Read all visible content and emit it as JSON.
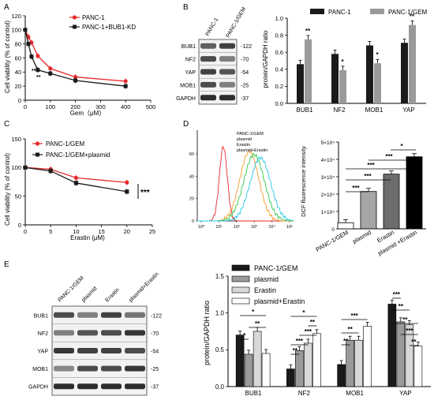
{
  "figure": {
    "panels": [
      "A",
      "B",
      "C",
      "D",
      "E"
    ]
  },
  "panel_a": {
    "letter": "A",
    "ylabel": "Cell viability (% of control)",
    "xlabel": "Gem（μM）",
    "yticks": [
      "0",
      "20",
      "40",
      "60",
      "80",
      "100",
      "120"
    ],
    "xticks": [
      "0",
      "100",
      "200",
      "300",
      "400",
      "500"
    ],
    "legend": [
      "PANC-1",
      "PANC-1+BUB1-KD"
    ],
    "sig": [
      "**",
      "**"
    ]
  },
  "panel_b": {
    "letter": "B",
    "lanes": [
      "PANC-1",
      "PANC-1/GEM"
    ],
    "proteins": [
      "BUB1",
      "NF2",
      "YAP",
      "MOB1",
      "GAPDH"
    ],
    "kda": [
      "-122",
      "-70",
      "-54",
      "-25",
      "-37"
    ],
    "ylabel": "protein/GAPDH ratio",
    "yticks": [
      "0.0",
      "0.2",
      "0.4",
      "0.6",
      "0.8",
      "1.0"
    ],
    "legend": [
      "PANC-1",
      "PANC-1/GEM"
    ],
    "sig": [
      "**",
      "*",
      "*",
      "**"
    ]
  },
  "panel_c": {
    "letter": "C",
    "ylabel": "Cell viability (% of control)",
    "xlabel": "Erastin (μM)",
    "yticks": [
      "0",
      "50",
      "100",
      "150"
    ],
    "xticks": [
      "0",
      "5",
      "10",
      "15",
      "20",
      "25"
    ],
    "legend": [
      "PANC-1/GEM",
      "PANC-1/GEM+plasmid"
    ],
    "sig": "***"
  },
  "panel_d": {
    "letter": "D",
    "hist_legend": [
      "PANC-1/GEM",
      "plasmid",
      "Erastin",
      "plasmid+Erastin"
    ],
    "hist_yticks": [
      "0",
      "20",
      "40",
      "60"
    ],
    "hist_xticks": [
      "10⁰",
      "10¹",
      "10²",
      "10³",
      "10⁴",
      "10⁵"
    ],
    "bar_ylabel": "DCF fluorescence intensity",
    "bar_yticks": [
      "0",
      "1×10⁴",
      "2×10⁴",
      "3×10⁴",
      "4×10⁴",
      "5×10⁴"
    ],
    "sig": [
      "*",
      "***",
      "***",
      "***",
      "***"
    ]
  },
  "panel_e": {
    "letter": "E",
    "lanes": [
      "PANC-1/GEM",
      "plasmid",
      "Erastin",
      "plasmid+Erastin"
    ],
    "proteins": [
      "BUB1",
      "NF2",
      "YAP",
      "MOB1",
      "GAPDH"
    ],
    "kda": [
      "-122",
      "-70",
      "-54",
      "-25",
      "-37"
    ],
    "ylabel": "protein/GAPDH ratio",
    "yticks": [
      "0.0",
      "0.5",
      "1.0",
      "1.5"
    ],
    "legend": [
      "PANC-1/GEM",
      "plasmid",
      "Erastin",
      "plasmid+Erastin"
    ]
  },
  "colors": {
    "red": "#e8282b",
    "black": "#1a1a1a",
    "grey": "#9a9a9a",
    "orange": "#f39c2a",
    "green": "#2ec94a",
    "cyan": "#27c7e6",
    "e_erastin": "#d8d8d8"
  },
  "chart_data": [
    {
      "panel": "A",
      "type": "line",
      "x": [
        0,
        12.5,
        25,
        50,
        100,
        200,
        400
      ],
      "xlabel": "Gem（μM）",
      "ylabel": "Cell viability (% of control)",
      "xlim": [
        0,
        500
      ],
      "ylim": [
        0,
        120
      ],
      "series": [
        {
          "name": "PANC-1",
          "values": [
            100,
            90,
            82,
            63,
            45,
            33,
            27
          ]
        },
        {
          "name": "PANC-1+BUB1-KD",
          "values": [
            100,
            80,
            62,
            43,
            38,
            28,
            20
          ]
        }
      ]
    },
    {
      "panel": "B",
      "type": "bar",
      "categories": [
        "BUB1",
        "NF2",
        "MOB1",
        "YAP"
      ],
      "ylabel": "protein/GAPDH ratio",
      "ylim": [
        0,
        1.0
      ],
      "series": [
        {
          "name": "PANC-1",
          "values": [
            0.46,
            0.58,
            0.68,
            0.71
          ]
        },
        {
          "name": "PANC-1/GEM",
          "values": [
            0.75,
            0.39,
            0.47,
            0.92
          ]
        }
      ]
    },
    {
      "panel": "C",
      "type": "line",
      "x": [
        0,
        5,
        10,
        20
      ],
      "xlabel": "Erastin (μM)",
      "ylabel": "Cell viability (% of control)",
      "xlim": [
        0,
        25
      ],
      "ylim": [
        0,
        150
      ],
      "series": [
        {
          "name": "PANC-1/GEM",
          "values": [
            100,
            97,
            82,
            74
          ]
        },
        {
          "name": "PANC-1/GEM+plasmid",
          "values": [
            100,
            94,
            73,
            58
          ]
        }
      ]
    },
    {
      "panel": "D",
      "type": "bar",
      "categories": [
        "PANC-1/GEM",
        "plasmid",
        "Erastin",
        "plasmid +Erastin"
      ],
      "ylabel": "DCF fluorescence intensity",
      "ylim": [
        0,
        50000
      ],
      "values": [
        3500,
        21500,
        31500,
        41500
      ]
    },
    {
      "panel": "E",
      "type": "bar",
      "categories": [
        "BUB1",
        "NF2",
        "MOB1",
        "YAP"
      ],
      "ylabel": "protein/GAPDH ratio",
      "ylim": [
        0,
        1.5
      ],
      "series": [
        {
          "name": "PANC-1/GEM",
          "values": [
            0.7,
            0.24,
            0.3,
            1.12
          ]
        },
        {
          "name": "plasmid",
          "values": [
            0.44,
            0.49,
            0.63,
            0.88
          ]
        },
        {
          "name": "Erastin",
          "values": [
            0.75,
            0.59,
            0.63,
            0.84
          ]
        },
        {
          "name": "plasmid+Erastin",
          "values": [
            0.45,
            0.72,
            0.82,
            0.55
          ]
        }
      ]
    }
  ]
}
